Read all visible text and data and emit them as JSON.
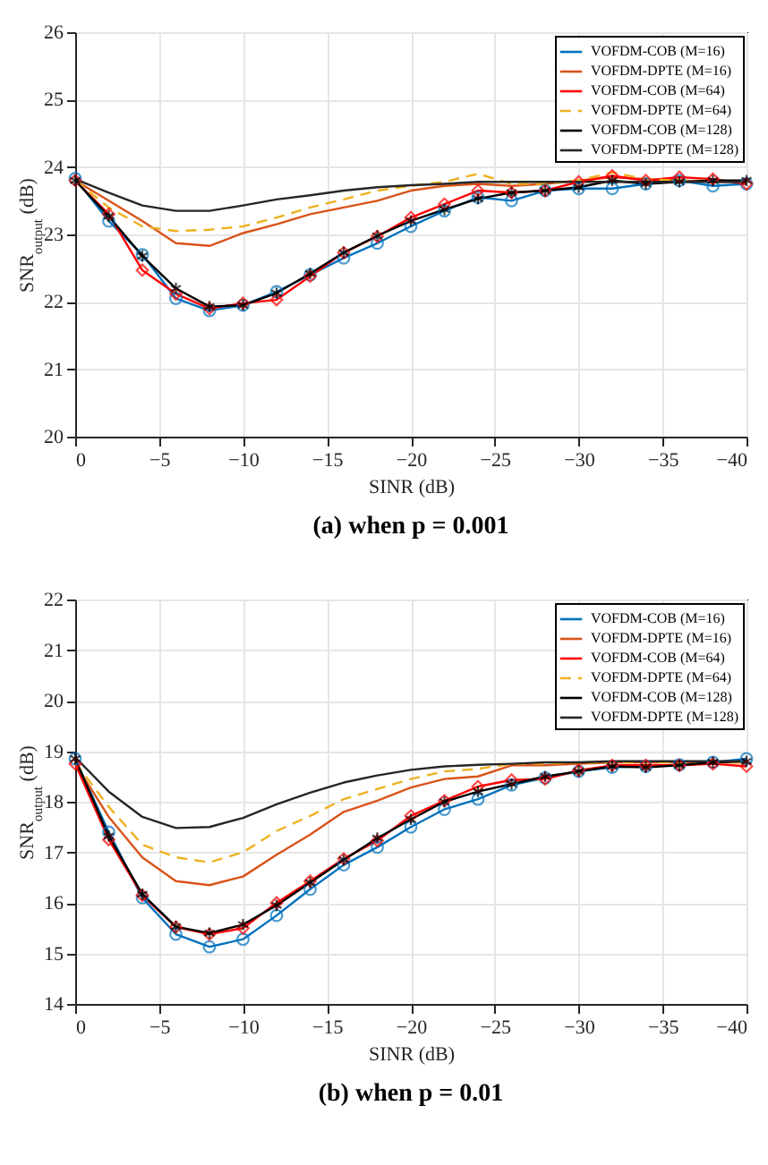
{
  "chart_data": [
    {
      "type": "line",
      "xlabel": "SINR (dB)",
      "ylabel": "SNR$_{output}$ (dB)",
      "annotations": [
        "(a) when p = 0.001"
      ],
      "x": [
        0,
        -2,
        -4,
        -6,
        -8,
        -10,
        -12,
        -14,
        -16,
        -18,
        -20,
        -22,
        -24,
        -26,
        -28,
        -30,
        -32,
        -34,
        -36,
        -38,
        -40
      ],
      "xlim": [
        0,
        -40
      ],
      "xticks": [
        0,
        -5,
        -10,
        -15,
        -20,
        -25,
        -30,
        -35,
        -40
      ],
      "ylim": [
        20,
        26
      ],
      "yticks": [
        20,
        21,
        22,
        23,
        24,
        25,
        26
      ],
      "grid": true,
      "legend": "top right",
      "series": [
        {
          "name": "VOFDM-COB (M=16)",
          "color": "#0072bd",
          "marker": "circle",
          "line_style": "solid",
          "values": [
            23.83,
            23.2,
            22.7,
            22.05,
            21.87,
            21.95,
            22.15,
            22.4,
            22.65,
            22.87,
            23.12,
            23.35,
            23.55,
            23.5,
            23.65,
            23.68,
            23.68,
            23.75,
            23.8,
            23.72,
            23.75
          ]
        },
        {
          "name": "VOFDM-DPTE (M=16)",
          "color": "#d95319",
          "marker": "none",
          "line_style": "solid",
          "values": [
            23.8,
            23.5,
            23.2,
            22.87,
            22.83,
            23.02,
            23.15,
            23.3,
            23.4,
            23.5,
            23.65,
            23.72,
            23.75,
            23.72,
            23.75,
            23.8,
            23.85,
            23.82,
            23.8,
            23.78,
            23.78
          ]
        },
        {
          "name": "VOFDM-COB (M=64)",
          "color": "#ff0000",
          "marker": "diamond",
          "line_style": "solid",
          "values": [
            23.8,
            23.3,
            22.47,
            22.12,
            21.9,
            21.98,
            22.03,
            22.38,
            22.73,
            22.97,
            23.25,
            23.45,
            23.65,
            23.62,
            23.65,
            23.78,
            23.87,
            23.8,
            23.85,
            23.82,
            23.75
          ]
        },
        {
          "name": "VOFDM-DPTE (M=64)",
          "color": "#edb120",
          "marker": "none",
          "line_style": "dashed",
          "values": [
            23.8,
            23.4,
            23.12,
            23.05,
            23.07,
            23.12,
            23.25,
            23.4,
            23.52,
            23.65,
            23.72,
            23.78,
            23.9,
            23.75,
            23.75,
            23.8,
            23.92,
            23.82,
            23.8,
            23.8,
            23.78
          ]
        },
        {
          "name": "VOFDM-COB (M=128)",
          "color": "#000000",
          "marker": "cross",
          "line_style": "solid",
          "values": [
            23.8,
            23.27,
            22.68,
            22.2,
            21.93,
            21.95,
            22.13,
            22.42,
            22.73,
            22.98,
            23.2,
            23.37,
            23.53,
            23.62,
            23.65,
            23.7,
            23.8,
            23.75,
            23.78,
            23.8,
            23.8
          ]
        },
        {
          "name": "VOFDM-DPTE (M=128)",
          "color": "#262626",
          "marker": "none",
          "line_style": "solid",
          "values": [
            23.82,
            23.62,
            23.43,
            23.35,
            23.35,
            23.43,
            23.52,
            23.58,
            23.65,
            23.7,
            23.73,
            23.75,
            23.78,
            23.78,
            23.78,
            23.78,
            23.78,
            23.78,
            23.78,
            23.78,
            23.78
          ]
        }
      ]
    },
    {
      "type": "line",
      "xlabel": "SINR (dB)",
      "ylabel": "SNR$_{output}$ (dB)",
      "annotations": [
        "(b) when p = 0.01"
      ],
      "x": [
        0,
        -2,
        -4,
        -6,
        -8,
        -10,
        -12,
        -14,
        -16,
        -18,
        -20,
        -22,
        -24,
        -26,
        -28,
        -30,
        -32,
        -34,
        -36,
        -38,
        -40
      ],
      "xlim": [
        0,
        -40
      ],
      "xticks": [
        0,
        -5,
        -10,
        -15,
        -20,
        -25,
        -30,
        -35,
        -40
      ],
      "ylim": [
        14,
        22
      ],
      "yticks": [
        14,
        15,
        16,
        17,
        18,
        19,
        20,
        21,
        22
      ],
      "grid": true,
      "legend": "top right",
      "series": [
        {
          "name": "VOFDM-COB (M=16)",
          "color": "#0072bd",
          "marker": "circle",
          "line_style": "solid",
          "values": [
            18.85,
            17.4,
            16.1,
            15.38,
            15.13,
            15.28,
            15.75,
            16.27,
            16.75,
            17.1,
            17.5,
            17.85,
            18.05,
            18.33,
            18.47,
            18.6,
            18.68,
            18.7,
            18.73,
            18.78,
            18.85
          ]
        },
        {
          "name": "VOFDM-DPTE (M=16)",
          "color": "#d95319",
          "marker": "none",
          "line_style": "solid",
          "values": [
            18.75,
            17.7,
            16.9,
            16.43,
            16.35,
            16.52,
            16.95,
            17.35,
            17.8,
            18.02,
            18.28,
            18.45,
            18.5,
            18.72,
            18.72,
            18.75,
            18.78,
            18.78,
            18.78,
            18.78,
            18.78
          ]
        },
        {
          "name": "VOFDM-COB (M=64)",
          "color": "#ff0000",
          "marker": "diamond",
          "line_style": "solid",
          "values": [
            18.75,
            17.25,
            16.15,
            15.52,
            15.38,
            15.5,
            16.0,
            16.43,
            16.87,
            17.23,
            17.72,
            18.02,
            18.3,
            18.43,
            18.45,
            18.62,
            18.72,
            18.72,
            18.72,
            18.75,
            18.7
          ]
        },
        {
          "name": "VOFDM-DPTE (M=64)",
          "color": "#edb120",
          "marker": "none",
          "line_style": "dashed",
          "values": [
            18.78,
            17.9,
            17.15,
            16.9,
            16.8,
            17.0,
            17.42,
            17.72,
            18.05,
            18.25,
            18.45,
            18.6,
            18.65,
            18.75,
            18.75,
            18.78,
            18.78,
            18.78,
            18.78,
            18.78,
            18.78
          ]
        },
        {
          "name": "VOFDM-COB (M=128)",
          "color": "#000000",
          "marker": "cross",
          "line_style": "solid",
          "values": [
            18.85,
            17.32,
            16.17,
            15.53,
            15.4,
            15.57,
            15.95,
            16.4,
            16.85,
            17.28,
            17.65,
            18.0,
            18.2,
            18.35,
            18.5,
            18.6,
            18.7,
            18.68,
            18.72,
            18.78,
            18.8
          ]
        },
        {
          "name": "VOFDM-DPTE (M=128)",
          "color": "#262626",
          "marker": "none",
          "line_style": "solid",
          "values": [
            18.88,
            18.2,
            17.7,
            17.48,
            17.5,
            17.68,
            17.95,
            18.18,
            18.38,
            18.52,
            18.63,
            18.7,
            18.73,
            18.75,
            18.78,
            18.78,
            18.8,
            18.8,
            18.8,
            18.8,
            18.8
          ]
        }
      ]
    }
  ]
}
